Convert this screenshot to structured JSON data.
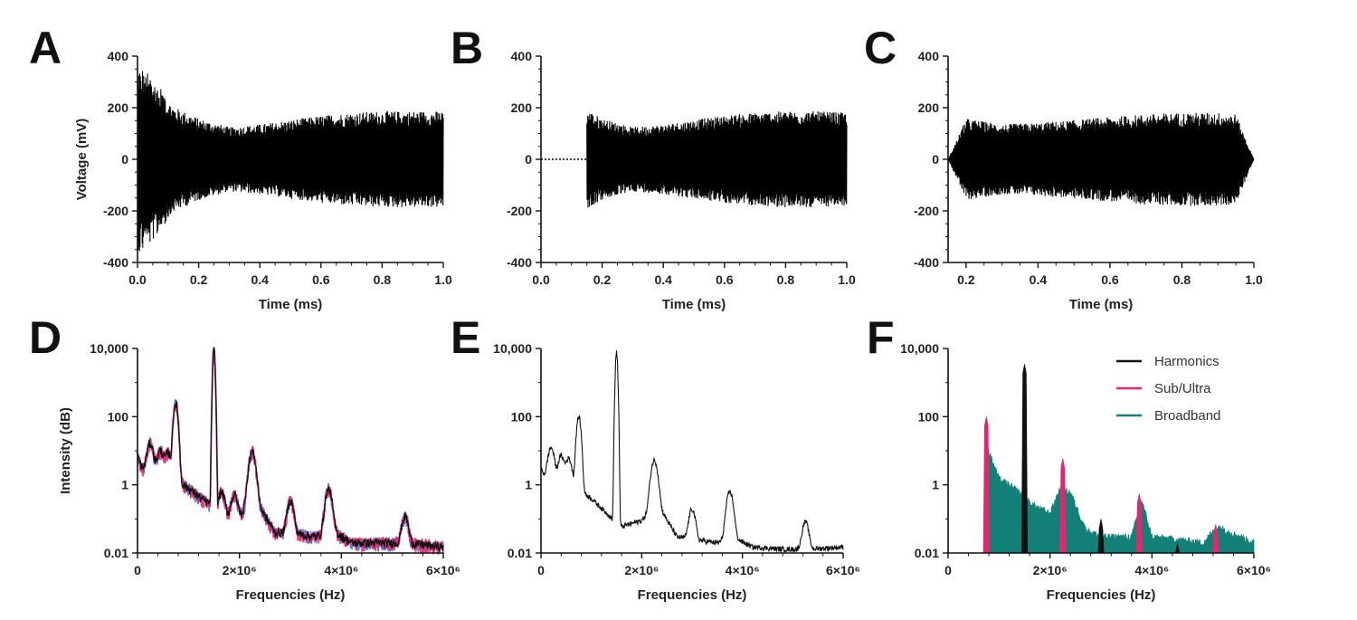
{
  "colors": {
    "harmonics": "#111111",
    "sub_ultra": "#e8246a",
    "broadband": "#138078",
    "trace": "#000000",
    "blue_variant": "#3a6fd0"
  },
  "chart_data": [
    {
      "panel": "A",
      "type": "line",
      "xlabel": "Time (ms)",
      "ylabel": "Voltage (mV)",
      "xlim": [
        0.0,
        1.0
      ],
      "ylim": [
        -400,
        400
      ],
      "xticks": [
        "0.0",
        "0.2",
        "0.4",
        "0.6",
        "0.8",
        "1.0"
      ],
      "yticks": [
        "400",
        "200",
        "0",
        "-200",
        "-400"
      ],
      "signal": {
        "t_start": 0.0,
        "t_end": 1.0,
        "initial_transient_peak": 330,
        "envelope_t": [
          0.0,
          0.1,
          0.2,
          0.3,
          0.4,
          0.5,
          0.6,
          0.7,
          0.8,
          0.9,
          1.0
        ],
        "envelope_mV": [
          280,
          190,
          140,
          110,
          120,
          135,
          150,
          160,
          165,
          165,
          165
        ]
      }
    },
    {
      "panel": "B",
      "type": "line",
      "xlabel": "Time (ms)",
      "ylabel": "",
      "xlim": [
        0.0,
        1.0
      ],
      "ylim": [
        -400,
        400
      ],
      "xticks": [
        "0.0",
        "0.2",
        "0.4",
        "0.6",
        "0.8",
        "1.0"
      ],
      "yticks": [
        "400",
        "200",
        "0",
        "-200",
        "-400"
      ],
      "signal": {
        "t_start": 0.15,
        "t_end": 1.0,
        "dotted_zero_until": 0.15,
        "envelope_t": [
          0.15,
          0.2,
          0.3,
          0.4,
          0.5,
          0.6,
          0.7,
          0.8,
          0.9,
          1.0
        ],
        "envelope_mV": [
          170,
          140,
          110,
          120,
          135,
          150,
          160,
          165,
          165,
          160
        ]
      }
    },
    {
      "panel": "C",
      "type": "line",
      "xlabel": "Time (ms)",
      "ylabel": "",
      "xlim": [
        0.15,
        1.0
      ],
      "ylim": [
        -400,
        400
      ],
      "xticks": [
        "0.2",
        "0.4",
        "0.6",
        "0.8",
        "1.0"
      ],
      "yticks": [
        "400",
        "200",
        "0",
        "-200",
        "-400"
      ],
      "signal": {
        "t_start": 0.15,
        "t_end": 1.0,
        "tapered": true,
        "envelope_t": [
          0.15,
          0.2,
          0.3,
          0.4,
          0.5,
          0.6,
          0.7,
          0.8,
          0.9,
          0.95,
          1.0
        ],
        "envelope_mV": [
          0,
          140,
          120,
          125,
          135,
          145,
          155,
          160,
          160,
          155,
          0
        ]
      }
    },
    {
      "panel": "D",
      "type": "line",
      "scale": "log",
      "xlabel": "Frequencies (Hz)",
      "ylabel": "Intensity (dB)",
      "xlim": [
        0,
        6000000
      ],
      "ylim": [
        0.01,
        10000
      ],
      "xticks": [
        "0",
        "2×10⁶",
        "4×10⁶",
        "6×10⁶"
      ],
      "yticks": [
        "10,000",
        "100",
        "1",
        "0.01"
      ],
      "series": [
        {
          "role": "main",
          "color": "harmonics"
        },
        {
          "role": "overlay",
          "color": "sub_ultra"
        },
        {
          "role": "overlay",
          "color": "blue_variant"
        }
      ],
      "spectrum": {
        "baseline_f": [
          0,
          100000,
          300000,
          500000,
          700000,
          1000000,
          1300000,
          1500000,
          1600000,
          2000000,
          2300000,
          2700000,
          3000000,
          3500000,
          3800000,
          4200000,
          4800000,
          5300000,
          6000000
        ],
        "baseline_I": [
          7,
          3,
          2.5,
          2,
          1.6,
          0.8,
          0.35,
          0.25,
          0.12,
          0.12,
          0.4,
          0.04,
          0.04,
          0.03,
          0.05,
          0.02,
          0.02,
          0.02,
          0.015
        ],
        "peaks": [
          {
            "f": 250000,
            "I": 14
          },
          {
            "f": 450000,
            "I": 8
          },
          {
            "f": 600000,
            "I": 7
          },
          {
            "f": 750000,
            "I": 250
          },
          {
            "f": 1500000,
            "I": 9000
          },
          {
            "f": 1650000,
            "I": 0.5
          },
          {
            "f": 1900000,
            "I": 0.4
          },
          {
            "f": 2250000,
            "I": 9
          },
          {
            "f": 3000000,
            "I": 0.3
          },
          {
            "f": 3750000,
            "I": 0.7
          },
          {
            "f": 5250000,
            "I": 0.1
          }
        ]
      }
    },
    {
      "panel": "E",
      "type": "line",
      "scale": "log",
      "xlabel": "Frequencies (Hz)",
      "ylabel": "",
      "xlim": [
        0,
        6000000
      ],
      "ylim": [
        0.01,
        10000
      ],
      "xticks": [
        "0",
        "2×10⁶",
        "4×10⁶",
        "6×10⁶"
      ],
      "yticks": [
        "10,000",
        "100",
        "1",
        "0.01"
      ],
      "spectrum": {
        "baseline_f": [
          0,
          100000,
          300000,
          500000,
          700000,
          1000000,
          1300000,
          1500000,
          1600000,
          2000000,
          2300000,
          2700000,
          3000000,
          3500000,
          3800000,
          4200000,
          4800000,
          5300000,
          6000000
        ],
        "baseline_I": [
          3,
          1.5,
          1.2,
          1.0,
          0.8,
          0.4,
          0.15,
          0.08,
          0.06,
          0.09,
          0.3,
          0.03,
          0.025,
          0.02,
          0.03,
          0.015,
          0.013,
          0.013,
          0.015
        ],
        "peaks": [
          {
            "f": 200000,
            "I": 11
          },
          {
            "f": 400000,
            "I": 6
          },
          {
            "f": 550000,
            "I": 5
          },
          {
            "f": 750000,
            "I": 100
          },
          {
            "f": 1500000,
            "I": 7500
          },
          {
            "f": 2250000,
            "I": 5
          },
          {
            "f": 3000000,
            "I": 0.17
          },
          {
            "f": 3750000,
            "I": 0.6
          },
          {
            "f": 5250000,
            "I": 0.07
          }
        ]
      }
    },
    {
      "panel": "F",
      "type": "area",
      "scale": "log",
      "xlabel": "Frequencies (Hz)",
      "ylabel": "",
      "xlim": [
        0,
        6000000
      ],
      "ylim": [
        0.01,
        10000
      ],
      "xticks": [
        "0",
        "2×10⁶",
        "4×10⁶",
        "6×10⁶"
      ],
      "yticks": [
        "10,000",
        "100",
        "1",
        "0.01"
      ],
      "legend": {
        "placement": "top-right",
        "entries": [
          {
            "label": "Harmonics",
            "color": "harmonics"
          },
          {
            "label": "Sub/Ultra",
            "color": "sub_ultra"
          },
          {
            "label": "Broadband",
            "color": "broadband"
          }
        ]
      },
      "broadband": {
        "f_start": 750000,
        "f_end": 6000000,
        "baseline_f": [
          750000,
          850000,
          1000000,
          1200000,
          1400000,
          1600000,
          1800000,
          2000000,
          2200000,
          2400000,
          2700000,
          3000000,
          3300000,
          3600000,
          3800000,
          4000000,
          4500000,
          5000000,
          5300000,
          6000000
        ],
        "baseline_I": [
          15,
          6,
          1.5,
          1.0,
          0.6,
          0.3,
          0.2,
          0.15,
          0.8,
          0.6,
          0.05,
          0.03,
          0.03,
          0.03,
          0.35,
          0.03,
          0.025,
          0.02,
          0.06,
          0.02
        ]
      },
      "bands": [
        {
          "type": "sub_ultra",
          "f": 750000,
          "I": 100
        },
        {
          "type": "harmonics",
          "f": 1500000,
          "I": 3500
        },
        {
          "type": "sub_ultra",
          "f": 2250000,
          "I": 6
        },
        {
          "type": "harmonics",
          "f": 3000000,
          "I": 0.1
        },
        {
          "type": "sub_ultra",
          "f": 3750000,
          "I": 0.55
        },
        {
          "type": "harmonics",
          "f": 4500000,
          "I": 0.02
        },
        {
          "type": "sub_ultra",
          "f": 5250000,
          "I": 0.07
        }
      ]
    }
  ]
}
